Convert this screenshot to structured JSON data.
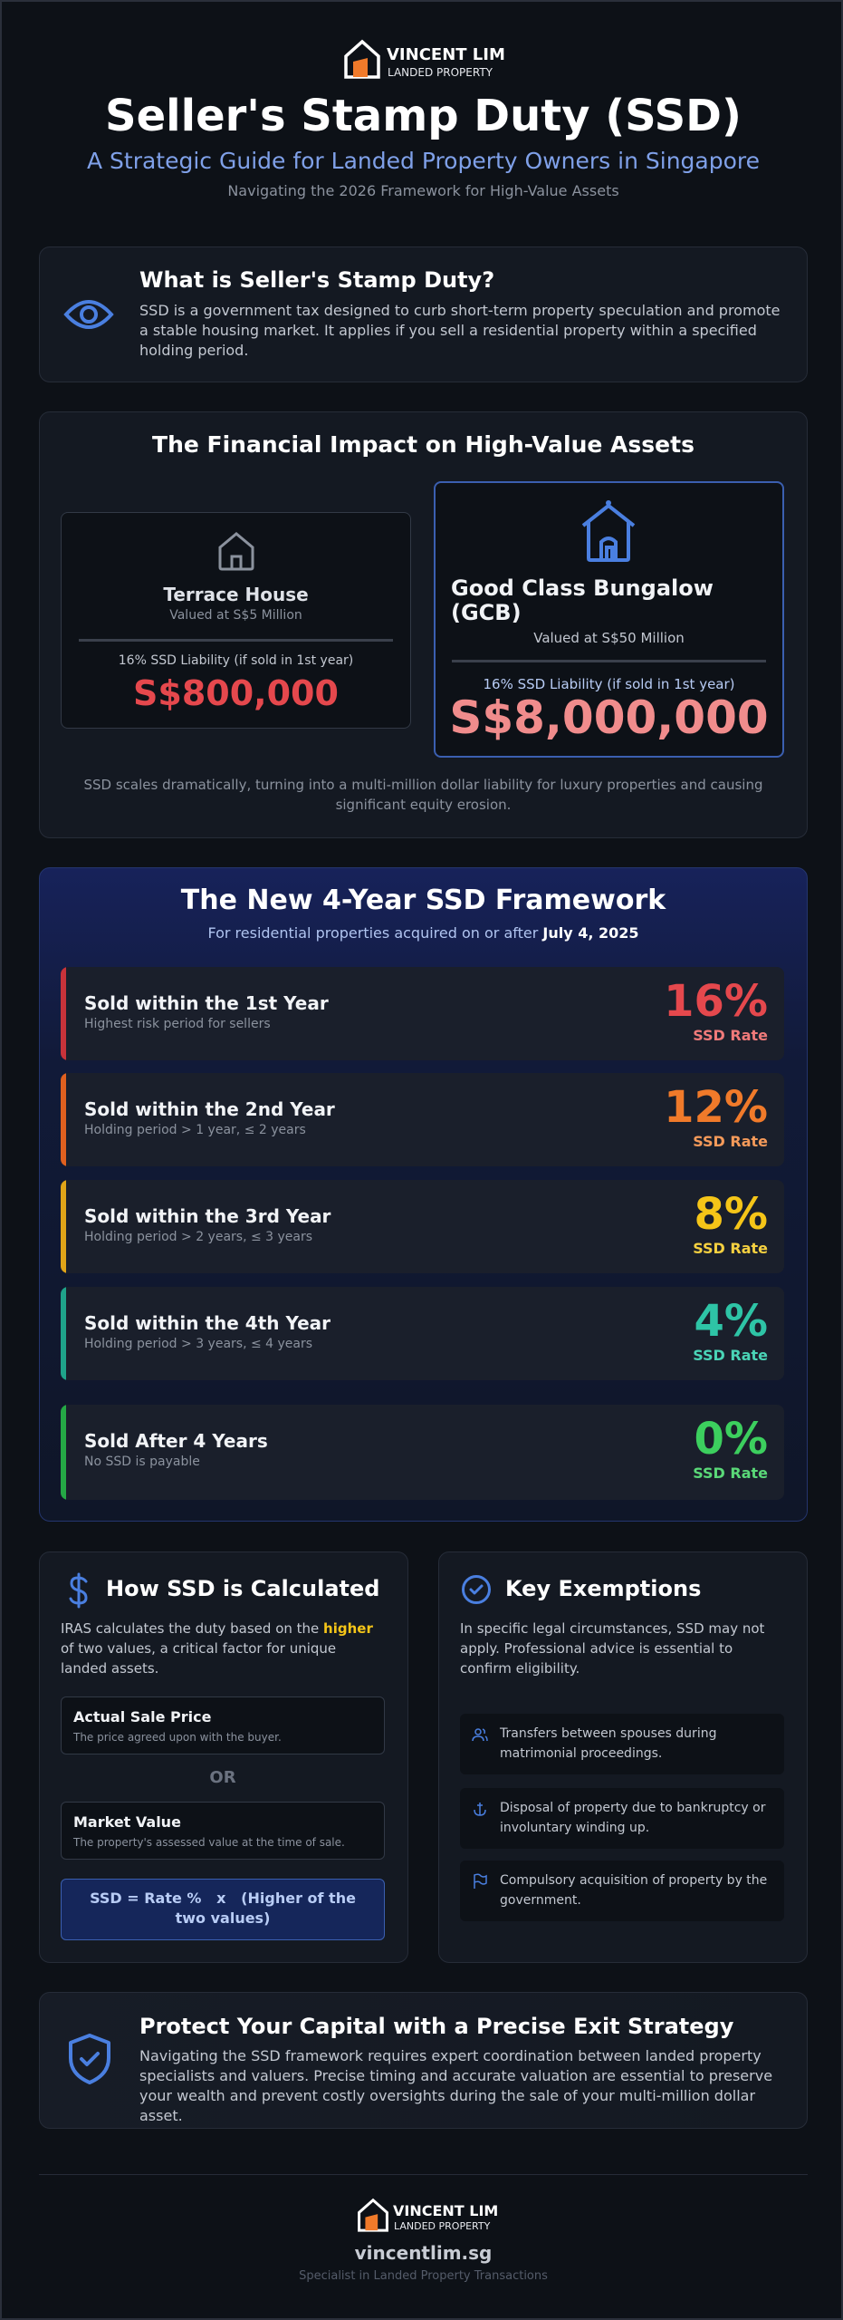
{
  "header": {
    "brand": "VINCENT LIM",
    "brand_sub": "LANDED PROPERTY",
    "title": "Seller's Stamp Duty (SSD)",
    "subtitle": "A Strategic Guide for Landed Property Owners in Singapore",
    "tagline": "Navigating the 2026 Framework for High-Value Assets"
  },
  "what_is": {
    "title": "What is Seller's Stamp Duty?",
    "text": "SSD is a government tax designed to curb short-term property speculation and promote a stable housing market. It applies if you sell a residential property within a specified holding period."
  },
  "impact": {
    "title": "The Financial Impact on High-Value Assets",
    "cards": [
      {
        "name": "Terrace House",
        "valued": "Valued at S$5 Million",
        "liability": "16% SSD Liability (if sold in 1st year)",
        "amount": "S$800,000"
      },
      {
        "name": "Good Class Bungalow (GCB)",
        "valued": "Valued at S$50 Million",
        "liability": "16% SSD Liability (if sold in 1st year)",
        "amount": "S$8,000,000"
      }
    ],
    "note": "SSD scales dramatically, turning into a multi-million dollar liability for luxury properties and causing significant equity erosion."
  },
  "framework": {
    "title": "The New 4-Year SSD Framework",
    "subtitle": "For residential properties acquired on or after",
    "subtitle_date": "July 4, 2025",
    "tiers": [
      {
        "title": "Sold within the 1st Year",
        "detail": "Highest risk period for sellers",
        "rate": "16%",
        "rate_label": "SSD Rate"
      },
      {
        "title": "Sold within the 2nd Year",
        "detail": "Holding period > 1 year, ≤ 2 years",
        "rate": "12%",
        "rate_label": "SSD Rate"
      },
      {
        "title": "Sold within the 3rd Year",
        "detail": "Holding period > 2 years, ≤ 3 years",
        "rate": "8%",
        "rate_label": "SSD Rate"
      },
      {
        "title": "Sold within the 4th Year",
        "detail": "Holding period > 3 years, ≤ 4 years",
        "rate": "4%",
        "rate_label": "SSD Rate"
      },
      {
        "title": "Sold After 4 Years",
        "detail": "No SSD is payable",
        "rate": "0%",
        "rate_label": "SSD Rate"
      }
    ]
  },
  "calculation": {
    "title": "How SSD is Calculated",
    "text_before": "IRAS calculates the duty based on the",
    "text_highlight": "higher",
    "text_after": "of two values, a critical factor for unique landed assets.",
    "options": [
      {
        "title": "Actual Sale Price",
        "detail": "The price agreed upon with the buyer."
      },
      {
        "title": "Market Value",
        "detail": "The property's assessed value at the time of sale."
      }
    ],
    "or": "OR",
    "formula": "SSD = Rate %   x   (Higher of the two values)"
  },
  "exemptions": {
    "title": "Key Exemptions",
    "text": "In specific legal circumstances, SSD may not apply. Professional advice is essential to confirm eligibility.",
    "items": [
      "Transfers between spouses during matrimonial proceedings.",
      "Disposal of property due to bankruptcy or involuntary winding up.",
      "Compulsory acquisition of property by the government."
    ]
  },
  "protect": {
    "title": "Protect Your Capital with a Precise Exit Strategy",
    "text": "Navigating the SSD framework requires expert coordination between landed property specialists and valuers. Precise timing and accurate valuation are essential to preserve your wealth and prevent costly oversights during the sale of your multi-million dollar asset."
  },
  "footer": {
    "brand": "VINCENT LIM",
    "brand_sub": "LANDED PROPERTY",
    "site": "vincentlim.sg",
    "tagline": "Specialist in Landed Property Transactions"
  }
}
